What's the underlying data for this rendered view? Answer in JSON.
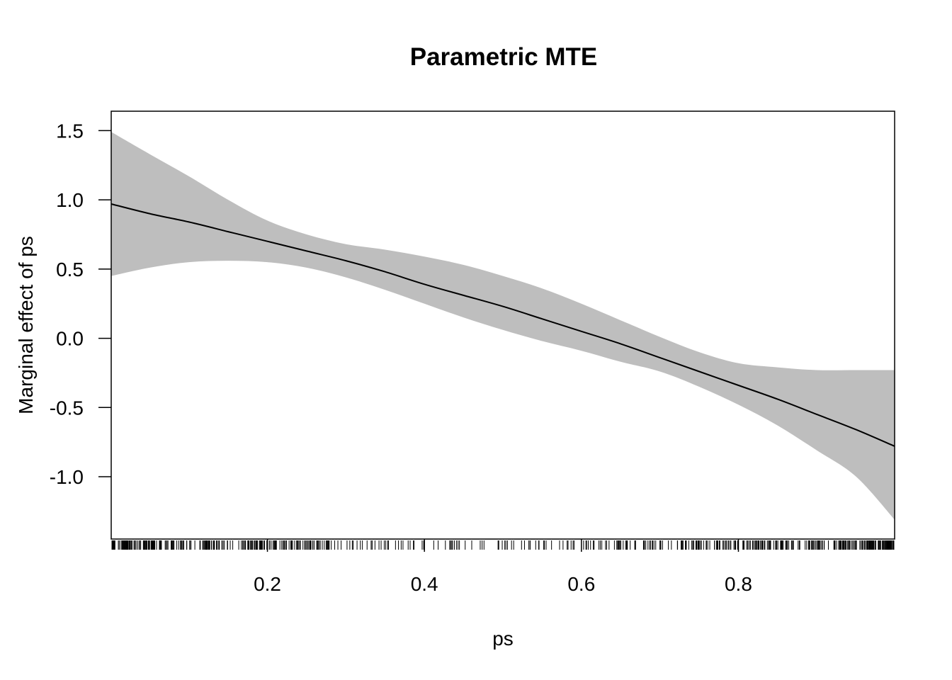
{
  "chart_data": {
    "type": "area",
    "title": "Parametric MTE",
    "xlabel": "ps",
    "ylabel": "Marginal effect of ps",
    "xlim": [
      0.001,
      0.999
    ],
    "ylim": [
      -1.45,
      1.64
    ],
    "xticks": [
      {
        "value": 0.2,
        "label": "0.2"
      },
      {
        "value": 0.4,
        "label": "0.4"
      },
      {
        "value": 0.6,
        "label": "0.6"
      },
      {
        "value": 0.8,
        "label": "0.8"
      }
    ],
    "yticks": [
      {
        "value": 1.5,
        "label": "1.5"
      },
      {
        "value": 1.0,
        "label": "1.0"
      },
      {
        "value": 0.5,
        "label": "0.5"
      },
      {
        "value": 0.0,
        "label": "0.0"
      },
      {
        "value": -0.5,
        "label": "-0.5"
      },
      {
        "value": -1.0,
        "label": "-1.0"
      }
    ],
    "grid": false,
    "colors": {
      "band": "#bebebe",
      "line": "#000000"
    },
    "series": [
      {
        "role": "estimate",
        "x": [
          0.001,
          0.05,
          0.1,
          0.15,
          0.2,
          0.25,
          0.3,
          0.35,
          0.4,
          0.45,
          0.5,
          0.55,
          0.6,
          0.65,
          0.7,
          0.75,
          0.8,
          0.85,
          0.9,
          0.95,
          0.999
        ],
        "y": [
          0.97,
          0.9,
          0.84,
          0.77,
          0.7,
          0.63,
          0.56,
          0.48,
          0.39,
          0.31,
          0.23,
          0.14,
          0.05,
          -0.04,
          -0.14,
          -0.24,
          -0.34,
          -0.44,
          -0.55,
          -0.66,
          -0.78
        ]
      },
      {
        "role": "confidence-band",
        "x": [
          0.001,
          0.05,
          0.1,
          0.15,
          0.2,
          0.25,
          0.3,
          0.35,
          0.4,
          0.45,
          0.5,
          0.55,
          0.6,
          0.65,
          0.7,
          0.75,
          0.8,
          0.85,
          0.9,
          0.95,
          0.999
        ],
        "upper": [
          1.49,
          1.33,
          1.17,
          1.0,
          0.85,
          0.75,
          0.68,
          0.64,
          0.59,
          0.53,
          0.45,
          0.36,
          0.25,
          0.13,
          0.01,
          -0.1,
          -0.18,
          -0.21,
          -0.23,
          -0.23,
          -0.23
        ],
        "lower": [
          0.45,
          0.51,
          0.55,
          0.56,
          0.55,
          0.51,
          0.44,
          0.35,
          0.25,
          0.15,
          0.06,
          -0.02,
          -0.09,
          -0.17,
          -0.24,
          -0.35,
          -0.48,
          -0.63,
          -0.81,
          -1.0,
          -1.31
        ]
      }
    ],
    "rug": {
      "x_from": 0.002,
      "x_to": 0.998
    }
  }
}
